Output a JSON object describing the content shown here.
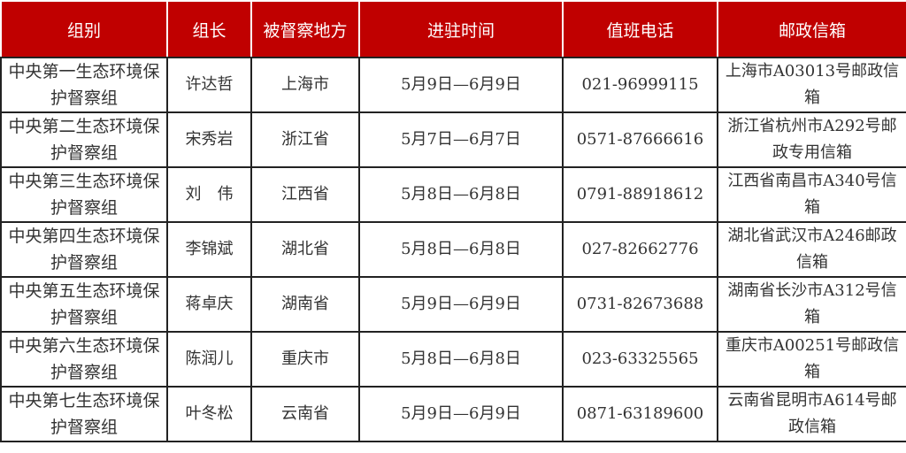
{
  "table": {
    "headers": [
      "组别",
      "组长",
      "被督察地方",
      "进驻时间",
      "值班电话",
      "邮政信箱"
    ],
    "rows": [
      [
        "中央第一生态环境保护督察组",
        "许达哲",
        "上海市",
        "5月9日—6月9日",
        "021-96999115",
        "上海市A03013号邮政信箱"
      ],
      [
        "中央第二生态环境保护督察组",
        "宋秀岩",
        "浙江省",
        "5月7日—6月7日",
        "0571-87666616",
        "浙江省杭州市A292号邮政专用信箱"
      ],
      [
        "中央第三生态环境保护督察组",
        "刘　伟",
        "江西省",
        "5月8日—6月8日",
        "0791-88918612",
        "江西省南昌市A340号信箱"
      ],
      [
        "中央第四生态环境保护督察组",
        "李锦斌",
        "湖北省",
        "5月8日—6月8日",
        "027-82662776",
        "湖北省武汉市A246邮政信箱"
      ],
      [
        "中央第五生态环境保护督察组",
        "蒋卓庆",
        "湖南省",
        "5月9日—6月9日",
        "0731-82673688",
        "湖南省长沙市A312号信箱"
      ],
      [
        "中央第六生态环境保护督察组",
        "陈润儿",
        "重庆市",
        "5月8日—6月8日",
        "023-63325565",
        "重庆市A00251号邮政信箱"
      ],
      [
        "中央第七生态环境保护督察组",
        "叶冬松",
        "云南省",
        "5月9日—6月9日",
        "0871-63189600",
        "云南省昆明市A614号邮政信箱"
      ]
    ]
  },
  "colors": {
    "header_bg": "#c00000",
    "header_text": "#ffffff"
  }
}
